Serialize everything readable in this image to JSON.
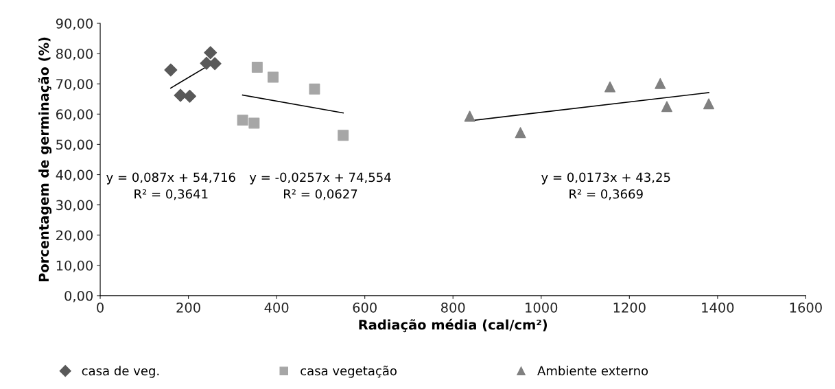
{
  "chart_data": {
    "type": "scatter",
    "xlabel": "Radiação média (cal/cm²)",
    "ylabel": "Porcentagem de germinação (%)",
    "xlim": [
      0,
      1600
    ],
    "xticks": [
      0,
      200,
      400,
      600,
      800,
      1000,
      1200,
      1400,
      1600
    ],
    "ylim": [
      0,
      90
    ],
    "yticks": [
      {
        "value": 0,
        "label": "0,00"
      },
      {
        "value": 10,
        "label": "10,00"
      },
      {
        "value": 20,
        "label": "20,00"
      },
      {
        "value": 30,
        "label": "30,00"
      },
      {
        "value": 40,
        "label": "40,00"
      },
      {
        "value": 50,
        "label": "50,00"
      },
      {
        "value": 60,
        "label": "60,00"
      },
      {
        "value": 70,
        "label": "70,00"
      },
      {
        "value": 80,
        "label": "80,00"
      },
      {
        "value": 90,
        "label": "90,00"
      }
    ],
    "grid": false,
    "legend": "bottom",
    "series": [
      {
        "name": "casa de veg.",
        "type": "scatter",
        "marker": "diamond",
        "color": "#595959",
        "x": [
          160,
          182,
          203,
          241,
          250,
          260
        ],
        "values": [
          74.6,
          66.2,
          65.9,
          76.8,
          80.3,
          76.7
        ]
      },
      {
        "name": "casa vegetação",
        "type": "scatter",
        "marker": "square",
        "color": "#a6a6a6",
        "x": [
          323,
          349,
          356,
          392,
          486,
          551
        ],
        "values": [
          58.0,
          57.0,
          75.5,
          72.2,
          68.3,
          53.0
        ]
      },
      {
        "name": "Ambiente externo",
        "type": "scatter",
        "marker": "triangle",
        "color": "#808080",
        "x": [
          838,
          953,
          1156,
          1270,
          1285,
          1380
        ],
        "values": [
          59.3,
          53.9,
          69.0,
          70.1,
          62.5,
          63.4
        ]
      },
      {
        "type": "line",
        "color": "#000000",
        "line_style": "solid",
        "x": [
          160,
          260
        ],
        "values": [
          68.6,
          77.3
        ]
      },
      {
        "type": "line",
        "color": "#000000",
        "line_style": "solid",
        "x": [
          323,
          551
        ],
        "values": [
          66.3,
          60.4
        ]
      },
      {
        "type": "line",
        "color": "#000000",
        "line_style": "solid",
        "x": [
          838,
          1380
        ],
        "values": [
          57.8,
          67.1
        ]
      }
    ],
    "annotations": [
      "y = 0,087x + 54,716\nR² = 0,3641",
      "y = -0,0257x + 74,554\nR² = 0,0627",
      "y = 0,0173x + 43,25\nR² = 0,3669"
    ]
  }
}
